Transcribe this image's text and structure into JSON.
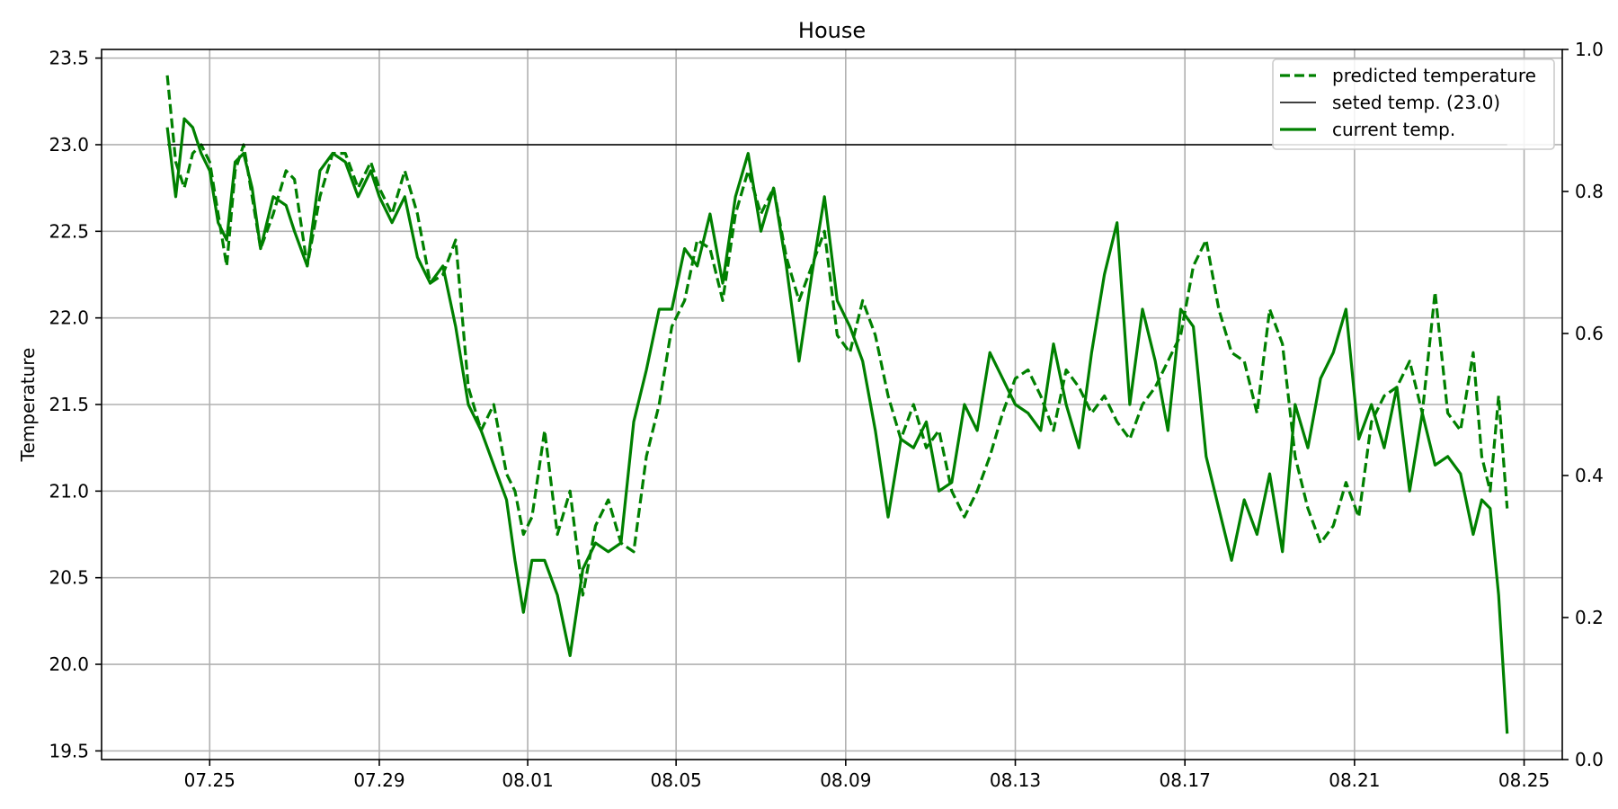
{
  "chart_data": {
    "type": "line",
    "title": "House",
    "xlabel": "",
    "ylabel": "Temperature",
    "x_ticks": [
      "07.25",
      "07.29",
      "08.01",
      "08.05",
      "08.09",
      "08.13",
      "08.17",
      "08.21",
      "08.25"
    ],
    "x_tick_values": [
      0.0,
      4.0,
      7.5,
      11.0,
      15.0,
      19.0,
      23.0,
      27.0,
      31.0
    ],
    "x_range": [
      -2.55,
      31.9
    ],
    "ylim": [
      19.45,
      23.55
    ],
    "y_ticks": [
      19.5,
      20.0,
      20.5,
      21.0,
      21.5,
      22.0,
      22.5,
      23.0,
      23.5
    ],
    "right_axis": {
      "ylim": [
        0.0,
        1.0
      ],
      "ticks": [
        "0.0",
        "0.2",
        "0.4",
        "0.6",
        "0.8",
        "1.0"
      ],
      "tick_values": [
        0.0,
        0.2,
        0.4,
        0.6,
        0.8,
        1.0
      ]
    },
    "grid": true,
    "legend_position": "top-right",
    "colors": {
      "predicted": "#008000",
      "current": "#008000",
      "setpoint": "#000000"
    },
    "series": [
      {
        "name": "predicted temperature",
        "style": "dashed",
        "x": [
          -1.0,
          -0.8,
          -0.6,
          -0.4,
          -0.2,
          0.0,
          0.2,
          0.4,
          0.6,
          0.8,
          1.0,
          1.2,
          1.5,
          1.8,
          2.0,
          2.3,
          2.6,
          2.9,
          3.2,
          3.5,
          3.8,
          4.0,
          4.3,
          4.6,
          4.9,
          5.2,
          5.5,
          5.8,
          6.1,
          6.4,
          6.7,
          7.0,
          7.2,
          7.4,
          7.6,
          7.9,
          8.2,
          8.5,
          8.8,
          9.1,
          9.4,
          9.7,
          10.0,
          10.3,
          10.6,
          10.9,
          11.2,
          11.5,
          11.8,
          12.1,
          12.4,
          12.7,
          13.0,
          13.3,
          13.6,
          13.9,
          14.2,
          14.5,
          14.8,
          15.1,
          15.4,
          15.7,
          16.0,
          16.3,
          16.6,
          16.9,
          17.2,
          17.5,
          17.8,
          18.1,
          18.4,
          18.7,
          19.0,
          19.3,
          19.6,
          19.9,
          20.2,
          20.5,
          20.8,
          21.1,
          21.4,
          21.7,
          22.0,
          22.3,
          22.6,
          22.9,
          23.2,
          23.5,
          23.8,
          24.1,
          24.4,
          24.7,
          25.0,
          25.3,
          25.6,
          25.9,
          26.2,
          26.5,
          26.8,
          27.1,
          27.4,
          27.7,
          28.0,
          28.3,
          28.6,
          28.9,
          29.2,
          29.5,
          29.8,
          30.0,
          30.2,
          30.4,
          30.6
        ],
        "values": [
          23.4,
          22.9,
          22.75,
          22.95,
          23.0,
          22.9,
          22.6,
          22.3,
          22.85,
          23.0,
          22.7,
          22.4,
          22.6,
          22.85,
          22.8,
          22.3,
          22.7,
          22.95,
          22.95,
          22.75,
          22.9,
          22.75,
          22.6,
          22.85,
          22.6,
          22.2,
          22.25,
          22.45,
          21.6,
          21.35,
          21.5,
          21.1,
          21.0,
          20.75,
          20.85,
          21.35,
          20.75,
          21.0,
          20.4,
          20.8,
          20.95,
          20.7,
          20.65,
          21.2,
          21.5,
          21.95,
          22.1,
          22.45,
          22.4,
          22.1,
          22.6,
          22.85,
          22.6,
          22.75,
          22.35,
          22.1,
          22.3,
          22.5,
          21.9,
          21.8,
          22.1,
          21.9,
          21.55,
          21.3,
          21.5,
          21.25,
          21.35,
          21.0,
          20.85,
          21.0,
          21.2,
          21.45,
          21.65,
          21.7,
          21.55,
          21.35,
          21.7,
          21.6,
          21.45,
          21.55,
          21.4,
          21.3,
          21.5,
          21.6,
          21.75,
          21.9,
          22.3,
          22.45,
          22.05,
          21.8,
          21.75,
          21.45,
          22.05,
          21.85,
          21.2,
          20.9,
          20.7,
          20.8,
          21.05,
          20.85,
          21.4,
          21.55,
          21.6,
          21.75,
          21.45,
          22.15,
          21.45,
          21.35,
          21.8,
          21.2,
          21.0,
          21.55,
          20.9
        ]
      },
      {
        "name": "seted temp. (23.0)",
        "style": "solid-thin",
        "x": [
          -1.0,
          30.6
        ],
        "values": [
          23.0,
          23.0
        ]
      },
      {
        "name": "current temp.",
        "style": "solid",
        "x": [
          -1.0,
          -0.8,
          -0.6,
          -0.4,
          -0.2,
          0.0,
          0.2,
          0.4,
          0.6,
          0.8,
          1.0,
          1.2,
          1.5,
          1.8,
          2.0,
          2.3,
          2.6,
          2.9,
          3.2,
          3.5,
          3.8,
          4.0,
          4.3,
          4.6,
          4.9,
          5.2,
          5.5,
          5.8,
          6.1,
          6.4,
          6.7,
          7.0,
          7.2,
          7.4,
          7.6,
          7.9,
          8.2,
          8.5,
          8.8,
          9.1,
          9.4,
          9.7,
          10.0,
          10.3,
          10.6,
          10.9,
          11.2,
          11.5,
          11.8,
          12.1,
          12.4,
          12.7,
          13.0,
          13.3,
          13.6,
          13.9,
          14.2,
          14.5,
          14.8,
          15.1,
          15.4,
          15.7,
          16.0,
          16.3,
          16.6,
          16.9,
          17.2,
          17.5,
          17.8,
          18.1,
          18.4,
          18.7,
          19.0,
          19.3,
          19.6,
          19.9,
          20.2,
          20.5,
          20.8,
          21.1,
          21.4,
          21.7,
          22.0,
          22.3,
          22.6,
          22.9,
          23.2,
          23.5,
          23.8,
          24.1,
          24.4,
          24.7,
          25.0,
          25.3,
          25.6,
          25.9,
          26.2,
          26.5,
          26.8,
          27.1,
          27.4,
          27.7,
          28.0,
          28.3,
          28.6,
          28.9,
          29.2,
          29.5,
          29.8,
          30.0,
          30.2,
          30.4,
          30.6
        ],
        "values": [
          23.1,
          22.7,
          23.15,
          23.1,
          22.95,
          22.85,
          22.55,
          22.45,
          22.9,
          22.95,
          22.75,
          22.4,
          22.7,
          22.65,
          22.5,
          22.3,
          22.85,
          22.95,
          22.9,
          22.7,
          22.85,
          22.7,
          22.55,
          22.7,
          22.35,
          22.2,
          22.3,
          21.95,
          21.5,
          21.35,
          21.15,
          20.95,
          20.6,
          20.3,
          20.6,
          20.6,
          20.4,
          20.05,
          20.55,
          20.7,
          20.65,
          20.7,
          21.4,
          21.7,
          22.05,
          22.05,
          22.4,
          22.3,
          22.6,
          22.2,
          22.7,
          22.95,
          22.5,
          22.75,
          22.3,
          21.75,
          22.25,
          22.7,
          22.1,
          21.95,
          21.75,
          21.35,
          20.85,
          21.3,
          21.25,
          21.4,
          21.0,
          21.05,
          21.5,
          21.35,
          21.8,
          21.65,
          21.5,
          21.45,
          21.35,
          21.85,
          21.5,
          21.25,
          21.8,
          22.25,
          22.55,
          21.5,
          22.05,
          21.75,
          21.35,
          22.05,
          21.95,
          21.2,
          20.9,
          20.6,
          20.95,
          20.75,
          21.1,
          20.65,
          21.5,
          21.25,
          21.65,
          21.8,
          22.05,
          21.3,
          21.5,
          21.25,
          21.6,
          21.0,
          21.45,
          21.15,
          21.2,
          21.1,
          20.75,
          20.95,
          20.9,
          20.4,
          19.6
        ]
      }
    ]
  }
}
